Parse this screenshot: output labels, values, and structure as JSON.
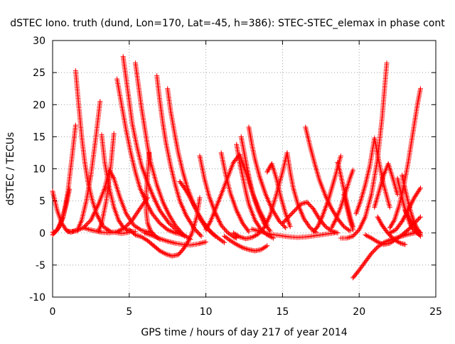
{
  "chart_data": {
    "type": "scatter",
    "title": "dSTEC Iono. truth (dund, Lon=170, Lat=-45, h=386): STEC-STEC_elemax in phase cont",
    "xlabel": "GPS time / hours of day 217 of year 2014",
    "ylabel": "dSTEC  / TECUs",
    "xlim": [
      0,
      25
    ],
    "ylim": [
      -10,
      30
    ],
    "x_ticks": [
      0,
      5,
      10,
      15,
      20,
      25
    ],
    "y_ticks": [
      -10,
      -5,
      0,
      5,
      10,
      15,
      20,
      25,
      30
    ],
    "x_tick_labels": [
      "0",
      "5",
      "10",
      "15",
      "20",
      "25"
    ],
    "y_tick_labels": [
      "-10",
      "-5",
      "0",
      "5",
      "10",
      "15",
      "20",
      "25",
      "30"
    ],
    "grid": true,
    "marker": "+",
    "colors": {
      "series": "#ff0000",
      "grid": "#a0a0a0",
      "axes": "#000000"
    },
    "series": [
      {
        "x": [
          0.0,
          0.3,
          0.6,
          0.9,
          1.2,
          1.5
        ],
        "y": [
          6.5,
          3.5,
          1.5,
          0.4,
          0.1,
          0.4
        ]
      },
      {
        "x": [
          0.0,
          0.2,
          0.4,
          0.7,
          1.0,
          1.3,
          1.5
        ],
        "y": [
          0.1,
          0.2,
          0.8,
          2.5,
          6.5,
          12.5,
          16.8
        ]
      },
      {
        "x": [
          0.0,
          0.3,
          0.6,
          0.9,
          1.1
        ],
        "y": [
          -0.3,
          0.5,
          2.0,
          4.5,
          6.8
        ]
      },
      {
        "x": [
          1.5,
          1.7,
          1.9,
          2.1,
          2.3,
          2.6,
          2.9,
          3.3,
          3.8,
          4.5,
          5.0
        ],
        "y": [
          25.3,
          20.0,
          15.0,
          11.0,
          8.0,
          5.0,
          2.8,
          1.0,
          0.2,
          -0.1,
          0.1
        ]
      },
      {
        "x": [
          1.6,
          1.9,
          2.2,
          2.5,
          2.8,
          3.1
        ],
        "y": [
          0.3,
          2.0,
          5.0,
          9.0,
          14.5,
          20.5
        ]
      },
      {
        "x": [
          1.0,
          1.5,
          2.0,
          2.5,
          3.0,
          3.4,
          3.7,
          4.0,
          4.4,
          4.8,
          5.3,
          5.8,
          6.5
        ],
        "y": [
          0.2,
          0.3,
          0.8,
          2.0,
          4.5,
          7.0,
          9.8,
          8.5,
          5.5,
          3.0,
          1.2,
          0.4,
          0.0
        ]
      },
      {
        "x": [
          3.2,
          3.4,
          3.7,
          4.0,
          4.3,
          4.6,
          5.0,
          5.4
        ],
        "y": [
          15.3,
          11.0,
          7.0,
          4.0,
          2.0,
          0.9,
          0.3,
          0.2
        ]
      },
      {
        "x": [
          3.0,
          3.2,
          3.5,
          3.8,
          4.0
        ],
        "y": [
          0.3,
          1.5,
          5.0,
          10.5,
          15.5
        ]
      },
      {
        "x": [
          2.0,
          2.6,
          3.2,
          3.7,
          4.2,
          4.7,
          5.2,
          5.7,
          6.2
        ],
        "y": [
          0.8,
          0.4,
          0.1,
          0.0,
          0.2,
          0.8,
          2.0,
          3.8,
          5.5
        ]
      },
      {
        "x": [
          4.2,
          4.5,
          4.8,
          5.1,
          5.4,
          5.7,
          6.1,
          6.5,
          7.0,
          7.5,
          8.0,
          8.5
        ],
        "y": [
          24.0,
          20.0,
          16.0,
          12.5,
          9.5,
          7.0,
          4.8,
          3.0,
          1.5,
          0.5,
          0.0,
          -0.3
        ]
      },
      {
        "x": [
          4.6,
          4.8,
          5.0,
          5.2,
          5.5,
          5.8,
          6.2,
          6.6,
          7.0,
          7.6,
          8.2,
          8.6
        ],
        "y": [
          27.5,
          24.0,
          20.5,
          17.0,
          13.5,
          10.5,
          7.8,
          5.5,
          3.5,
          1.5,
          0.2,
          -0.5
        ]
      },
      {
        "x": [
          5.4,
          5.6,
          5.8,
          6.0,
          6.2,
          6.4,
          6.8,
          7.2,
          7.6,
          8.0,
          8.5,
          9.0
        ],
        "y": [
          26.5,
          23.0,
          19.5,
          16.5,
          13.5,
          11.0,
          7.5,
          4.8,
          2.8,
          1.2,
          -0.2,
          -1.0
        ]
      },
      {
        "x": [
          6.8,
          7.0,
          7.2,
          7.4,
          7.7,
          8.0,
          8.3,
          8.7,
          9.2,
          9.7
        ],
        "y": [
          24.5,
          20.5,
          17.0,
          14.0,
          10.5,
          7.5,
          5.0,
          2.8,
          0.8,
          -0.5
        ]
      },
      {
        "x": [
          7.5,
          7.7,
          8.0,
          8.2,
          8.5,
          8.8,
          9.2,
          9.6,
          10.0,
          10.6
        ],
        "y": [
          22.5,
          19.0,
          15.0,
          12.5,
          9.5,
          7.0,
          4.5,
          2.3,
          0.8,
          -0.5
        ]
      },
      {
        "x": [
          5.0,
          5.4,
          5.8,
          6.2,
          6.6,
          7.0,
          7.4,
          7.8,
          8.2,
          8.5,
          8.8,
          9.1,
          9.4,
          9.6
        ],
        "y": [
          0.5,
          -0.3,
          -0.6,
          -1.2,
          -2.0,
          -2.8,
          -3.3,
          -3.6,
          -3.4,
          -2.6,
          -1.5,
          0.0,
          2.5,
          5.5
        ]
      },
      {
        "x": [
          6.0,
          6.5,
          7.0,
          7.5,
          8.0,
          8.5,
          9.0,
          9.5,
          10.0
        ],
        "y": [
          0.0,
          -0.4,
          -0.9,
          -1.3,
          -1.6,
          -1.8,
          -1.9,
          -1.7,
          -1.4
        ]
      },
      {
        "x": [
          6.3,
          6.2,
          6.1,
          6.1,
          6.2,
          6.4,
          6.7,
          7.0
        ],
        "y": [
          12.5,
          9.0,
          6.0,
          3.5,
          1.5,
          0.3,
          -0.5,
          -1.0
        ]
      },
      {
        "x": [
          8.3,
          8.6,
          8.9,
          9.2,
          9.5,
          9.8,
          10.1,
          10.4,
          10.8,
          11.2
        ],
        "y": [
          8.0,
          7.0,
          5.8,
          4.4,
          3.0,
          1.8,
          0.8,
          0.0,
          -0.8,
          -1.5
        ]
      },
      {
        "x": [
          9.6,
          9.9,
          10.2,
          10.6,
          11.0,
          11.4,
          11.8,
          12.0
        ],
        "y": [
          12.0,
          8.5,
          5.8,
          3.2,
          1.2,
          0.1,
          -0.6,
          -0.8
        ]
      },
      {
        "x": [
          10.0,
          10.3,
          10.6,
          11.0,
          11.4,
          11.8,
          12.2,
          12.6,
          13.0,
          13.5,
          14.0
        ],
        "y": [
          0.5,
          1.8,
          3.6,
          6.0,
          8.5,
          11.0,
          12.2,
          9.5,
          6.5,
          3.5,
          1.2
        ]
      },
      {
        "x": [
          11.0,
          11.3,
          11.6,
          12.0,
          12.4,
          12.8
        ],
        "y": [
          12.5,
          9.0,
          6.2,
          3.5,
          1.5,
          0.2
        ]
      },
      {
        "x": [
          11.2,
          11.6,
          12.0,
          12.4,
          12.8,
          13.2,
          13.6,
          14.0
        ],
        "y": [
          -0.5,
          -1.2,
          -1.8,
          -2.3,
          -2.6,
          -2.8,
          -2.6,
          -2.0
        ]
      },
      {
        "x": [
          12.0,
          12.2,
          12.4,
          12.6,
          12.8,
          13.2,
          13.6,
          14.0,
          14.4
        ],
        "y": [
          13.8,
          11.0,
          8.8,
          6.5,
          4.5,
          2.0,
          0.5,
          -0.3,
          -0.8
        ]
      },
      {
        "x": [
          12.3,
          12.5,
          12.7,
          12.9,
          13.1,
          13.4,
          13.8,
          14.2
        ],
        "y": [
          15.0,
          12.5,
          10.0,
          7.8,
          5.8,
          3.6,
          1.5,
          0.3
        ]
      },
      {
        "x": [
          12.8,
          13.0,
          13.2,
          13.5,
          13.9,
          14.3,
          14.8,
          15.2
        ],
        "y": [
          16.5,
          13.8,
          11.5,
          8.8,
          6.0,
          3.8,
          1.8,
          0.8
        ]
      },
      {
        "x": [
          11.8,
          12.2,
          12.6,
          13.0,
          13.4,
          13.8,
          14.2,
          14.6,
          15.0,
          15.3
        ],
        "y": [
          0.0,
          -0.6,
          -0.9,
          -0.7,
          -0.2,
          0.8,
          2.8,
          6.0,
          9.5,
          12.5
        ]
      },
      {
        "x": [
          13.0,
          13.6,
          14.2,
          14.8,
          15.4,
          16.0,
          16.6,
          17.2,
          17.8,
          18.4
        ],
        "y": [
          0.6,
          0.2,
          -0.2,
          -0.4,
          -0.6,
          -0.7,
          -0.6,
          -0.4,
          -0.2,
          0.0
        ]
      },
      {
        "x": [
          14.0,
          14.3,
          14.6,
          14.9,
          15.2,
          15.5
        ],
        "y": [
          9.5,
          10.8,
          8.5,
          5.5,
          3.0,
          1.0
        ]
      },
      {
        "x": [
          15.3,
          15.5,
          15.7,
          16.0,
          16.4,
          16.8,
          17.2
        ],
        "y": [
          12.5,
          9.5,
          7.0,
          4.5,
          2.2,
          0.8,
          0.1
        ]
      },
      {
        "x": [
          15.0,
          15.4,
          15.8,
          16.2,
          16.6,
          17.0,
          17.4,
          17.8,
          18.2,
          18.6
        ],
        "y": [
          1.5,
          2.5,
          3.5,
          4.5,
          4.8,
          3.8,
          2.2,
          1.0,
          0.3,
          0.0
        ]
      },
      {
        "x": [
          16.5,
          16.8,
          17.1,
          17.4,
          17.8,
          18.2,
          18.6,
          19.0,
          19.4
        ],
        "y": [
          16.5,
          13.5,
          10.8,
          8.3,
          5.8,
          3.8,
          2.2,
          1.0,
          0.3
        ]
      },
      {
        "x": [
          17.0,
          17.3,
          17.6,
          18.0,
          18.4,
          18.8
        ],
        "y": [
          0.2,
          1.0,
          2.6,
          5.2,
          8.5,
          12.0
        ]
      },
      {
        "x": [
          18.2,
          18.5,
          18.8,
          19.1,
          19.4,
          19.6
        ],
        "y": [
          0.8,
          2.2,
          4.0,
          6.2,
          8.5,
          9.8
        ]
      },
      {
        "x": [
          18.6,
          18.8,
          19.0,
          19.2,
          19.4,
          19.6
        ],
        "y": [
          11.0,
          9.0,
          6.8,
          4.6,
          2.6,
          1.0
        ]
      },
      {
        "x": [
          19.0,
          19.2,
          19.4,
          19.6
        ],
        "y": [
          6.0,
          4.0,
          2.0,
          0.5
        ]
      },
      {
        "x": [
          19.6,
          20.0,
          20.4,
          20.8,
          21.2,
          21.6,
          22.0,
          22.4,
          22.8,
          23.2,
          23.6,
          24.0
        ],
        "y": [
          -7.0,
          -5.8,
          -4.5,
          -3.2,
          -2.2,
          -1.5,
          -1.1,
          -0.8,
          -0.5,
          -0.2,
          0.0,
          0.0
        ]
      },
      {
        "x": [
          18.8,
          19.2,
          19.6,
          20.0,
          20.4,
          20.8,
          21.2,
          21.5,
          21.8
        ],
        "y": [
          -0.8,
          -0.8,
          -0.5,
          0.5,
          2.5,
          6.0,
          11.5,
          18.0,
          26.5
        ]
      },
      {
        "x": [
          19.8,
          20.1,
          20.4,
          20.7,
          21.0,
          21.3,
          21.6,
          22.0
        ],
        "y": [
          3.0,
          5.0,
          7.5,
          10.5,
          14.8,
          11.0,
          7.5,
          4.0
        ]
      },
      {
        "x": [
          21.0,
          21.3,
          21.6,
          21.9,
          22.2,
          22.5
        ],
        "y": [
          4.0,
          6.5,
          9.0,
          10.8,
          8.5,
          6.0
        ]
      },
      {
        "x": [
          20.4,
          20.8,
          21.2,
          21.6,
          22.0,
          22.4,
          22.8,
          23.2,
          23.6,
          24.0
        ],
        "y": [
          -0.3,
          -0.8,
          -1.4,
          -1.8,
          -1.6,
          -1.0,
          -0.3,
          0.5,
          1.5,
          2.5
        ]
      },
      {
        "x": [
          21.2,
          21.5,
          21.8,
          22.1,
          22.4,
          22.7,
          23.0
        ],
        "y": [
          2.5,
          1.2,
          0.2,
          -0.6,
          -1.2,
          -1.6,
          -1.8
        ]
      },
      {
        "x": [
          22.5,
          22.7,
          22.9,
          23.1,
          23.3,
          23.5,
          23.7,
          23.9,
          24.0
        ],
        "y": [
          8.5,
          6.5,
          4.5,
          2.8,
          1.5,
          0.6,
          0.1,
          -0.2,
          -0.3
        ]
      },
      {
        "x": [
          22.8,
          23.0,
          23.2,
          23.4,
          23.6,
          23.8,
          24.0
        ],
        "y": [
          9.0,
          6.8,
          4.8,
          3.0,
          1.6,
          0.6,
          0.0
        ]
      },
      {
        "x": [
          22.0,
          22.4,
          22.8,
          23.2,
          23.6,
          24.0
        ],
        "y": [
          0.0,
          0.5,
          1.8,
          3.6,
          5.5,
          7.0
        ]
      },
      {
        "x": [
          22.0,
          22.3,
          22.6,
          22.9,
          23.2,
          23.5,
          23.8,
          24.0
        ],
        "y": [
          0.8,
          2.0,
          4.2,
          7.2,
          11.0,
          15.5,
          20.0,
          22.5
        ]
      },
      {
        "x": [
          23.0,
          23.3,
          23.6,
          23.8,
          24.0
        ],
        "y": [
          3.5,
          2.2,
          1.0,
          0.0,
          -0.5
        ]
      }
    ]
  }
}
